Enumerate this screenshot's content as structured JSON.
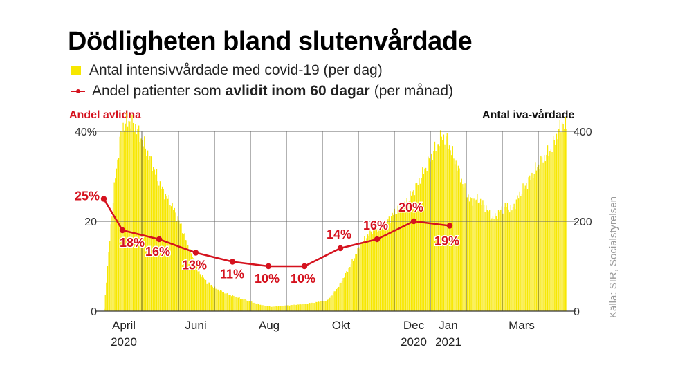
{
  "colors": {
    "accent_red": "#d5121e",
    "bar_yellow": "#f7e700",
    "grid": "#555555"
  },
  "chart_data": {
    "type": "bar+line",
    "title": "Dödligheten bland slutenvårdade",
    "legend": {
      "bars": "Antal intensivvårdade med covid-19 (per dag)",
      "line_before": "Andel patienter som",
      "line_bold": "avlidit inom 60 dagar",
      "line_after": "(per månad)"
    },
    "left_axis_label": "Andel avlidna",
    "right_axis_label": "Antal iva-vårdade",
    "left_ticks": [
      "40%",
      "20",
      "0"
    ],
    "right_ticks": [
      "400",
      "200",
      "0"
    ],
    "left_ylim": [
      0,
      40
    ],
    "right_ylim": [
      0,
      400
    ],
    "x_ticks": [
      {
        "line1": "April",
        "line2": "2020"
      },
      {
        "line1": "Juni",
        "line2": ""
      },
      {
        "line1": "Aug",
        "line2": ""
      },
      {
        "line1": "Okt",
        "line2": ""
      },
      {
        "line1": "Dec",
        "line2": "2020"
      },
      {
        "line1": "Jan",
        "line2": "2021"
      },
      {
        "line1": "Mars",
        "line2": ""
      }
    ],
    "bars_daily_iva": {
      "days": 415,
      "anchors": [
        [
          0,
          5
        ],
        [
          6,
          190
        ],
        [
          10,
          300
        ],
        [
          16,
          410
        ],
        [
          22,
          425
        ],
        [
          28,
          410
        ],
        [
          36,
          370
        ],
        [
          44,
          320
        ],
        [
          52,
          270
        ],
        [
          60,
          240
        ],
        [
          68,
          195
        ],
        [
          76,
          140
        ],
        [
          84,
          90
        ],
        [
          92,
          65
        ],
        [
          100,
          50
        ],
        [
          110,
          38
        ],
        [
          120,
          30
        ],
        [
          130,
          22
        ],
        [
          140,
          14
        ],
        [
          150,
          10
        ],
        [
          160,
          12
        ],
        [
          170,
          14
        ],
        [
          180,
          16
        ],
        [
          190,
          20
        ],
        [
          200,
          24
        ],
        [
          210,
          55
        ],
        [
          220,
          100
        ],
        [
          230,
          150
        ],
        [
          240,
          180
        ],
        [
          250,
          190
        ],
        [
          260,
          220
        ],
        [
          270,
          240
        ],
        [
          280,
          280
        ],
        [
          290,
          330
        ],
        [
          300,
          380
        ],
        [
          303,
          390
        ],
        [
          307,
          380
        ],
        [
          315,
          330
        ],
        [
          323,
          270
        ],
        [
          328,
          245
        ],
        [
          335,
          250
        ],
        [
          342,
          230
        ],
        [
          348,
          205
        ],
        [
          355,
          225
        ],
        [
          360,
          235
        ],
        [
          365,
          225
        ],
        [
          372,
          260
        ],
        [
          380,
          290
        ],
        [
          390,
          330
        ],
        [
          400,
          360
        ],
        [
          407,
          400
        ],
        [
          410,
          420
        ],
        [
          415,
          405
        ]
      ]
    },
    "line_series": {
      "name": "Andel patienter som avlidit inom 60 dagar (per månad)",
      "points": [
        {
          "month": "Mars",
          "value": 25,
          "label": "25%"
        },
        {
          "month": "April",
          "value": 18,
          "label": "18%"
        },
        {
          "month": "Maj",
          "value": 16,
          "label": "16%"
        },
        {
          "month": "Juni",
          "value": 13,
          "label": "13%"
        },
        {
          "month": "Juli",
          "value": 11,
          "label": "11%"
        },
        {
          "month": "Aug",
          "value": 10,
          "label": "10%"
        },
        {
          "month": "Sep",
          "value": 10,
          "label": "10%"
        },
        {
          "month": "Okt",
          "value": 14,
          "label": "14%"
        },
        {
          "month": "Nov",
          "value": 16,
          "label": "16%"
        },
        {
          "month": "Dec",
          "value": 20,
          "label": "20%"
        },
        {
          "month": "Jan",
          "value": 19,
          "label": "19%"
        }
      ]
    },
    "source": "Källa: SIR, Socialstyrelsen"
  }
}
